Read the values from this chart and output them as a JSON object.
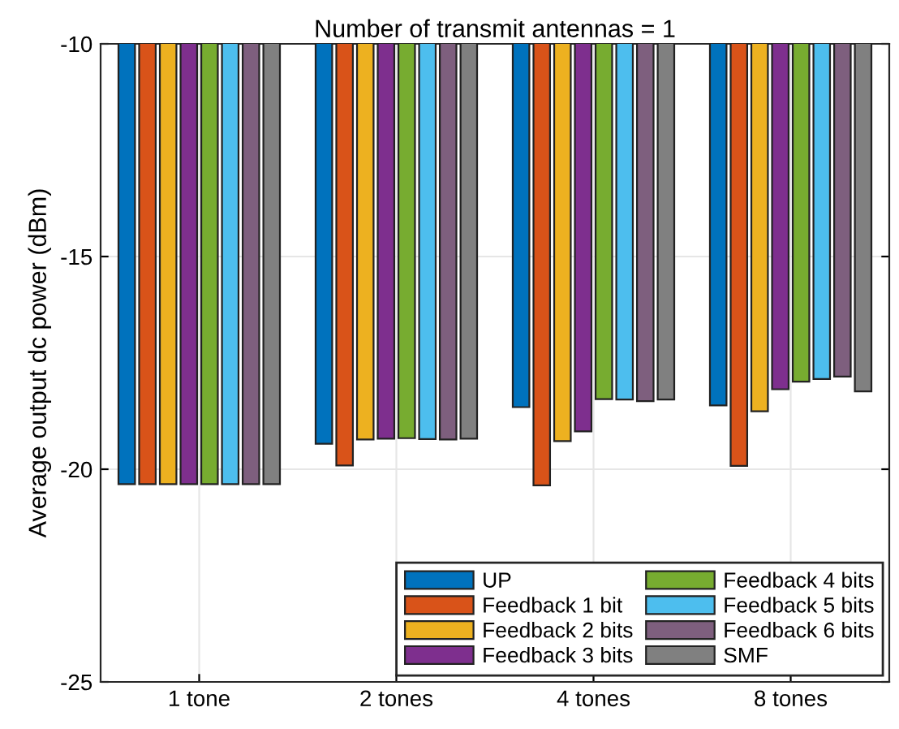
{
  "chart_data": {
    "type": "bar",
    "title": "Number of transmit antennas = 1",
    "ylabel": "Average output dc power (dBm)",
    "categories": [
      "1 tone",
      "2 tones",
      "4 tones",
      "8 tones"
    ],
    "series": [
      {
        "name": "UP",
        "color": "#0072bd",
        "values": [
          -20.35,
          -19.4,
          -18.54,
          -18.5
        ]
      },
      {
        "name": "Feedback 1 bit",
        "color": "#d95319",
        "values": [
          -20.35,
          -19.91,
          -20.38,
          -19.92
        ]
      },
      {
        "name": "Feedback 2 bits",
        "color": "#edb120",
        "values": [
          -20.35,
          -19.3,
          -19.34,
          -18.64
        ]
      },
      {
        "name": "Feedback 3 bits",
        "color": "#7e2f8e",
        "values": [
          -20.35,
          -19.28,
          -19.11,
          -18.12
        ]
      },
      {
        "name": "Feedback 4 bits",
        "color": "#77ac30",
        "values": [
          -20.35,
          -19.27,
          -18.35,
          -17.94
        ]
      },
      {
        "name": "Feedback 5 bits",
        "color": "#4dbeee",
        "values": [
          -20.35,
          -19.29,
          -18.36,
          -17.88
        ]
      },
      {
        "name": "Feedback 6 bits",
        "color": "#7e5f7e",
        "values": [
          -20.35,
          -19.3,
          -18.4,
          -17.82
        ]
      },
      {
        "name": "SMF",
        "color": "#808080",
        "values": [
          -20.35,
          -19.28,
          -18.36,
          -18.17
        ]
      }
    ],
    "ylim": [
      -25,
      -10
    ],
    "yticks": [
      -25,
      -20,
      -15,
      -10
    ],
    "grid": true,
    "legend": "bottom right"
  }
}
